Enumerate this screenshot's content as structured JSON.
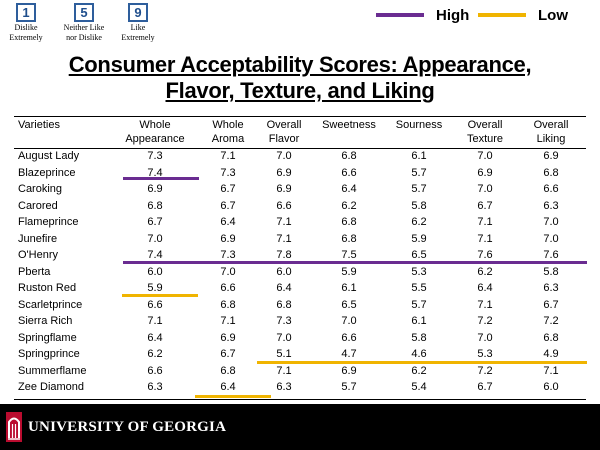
{
  "scale": [
    {
      "value": "1",
      "caption": [
        "Dislike",
        "Extremely"
      ]
    },
    {
      "value": "5",
      "caption": [
        "Neither Like",
        "nor Dislike"
      ]
    },
    {
      "value": "9",
      "caption": [
        "Like",
        "Extremely"
      ]
    }
  ],
  "legend": {
    "high": {
      "label": "High",
      "color": "#6a2c91"
    },
    "low": {
      "label": "Low",
      "color": "#f0b400"
    }
  },
  "title": {
    "line1": "Consumer Acceptability Scores: Appearance,",
    "line2": "Flavor, Texture, and Liking"
  },
  "table": {
    "columns": [
      [
        "Varieties"
      ],
      [
        "Whole",
        "Appearance"
      ],
      [
        "Whole",
        "Aroma"
      ],
      [
        "Overall",
        "Flavor"
      ],
      [
        "Sweetness"
      ],
      [
        "Sourness"
      ],
      [
        "Overall",
        "Texture"
      ],
      [
        "Overall",
        "Liking"
      ]
    ],
    "rows": [
      [
        "August Lady",
        "7.3",
        "7.1",
        "7.0",
        "6.8",
        "6.1",
        "7.0",
        "6.9"
      ],
      [
        "Blazeprince",
        "7.4",
        "7.3",
        "6.9",
        "6.6",
        "5.7",
        "6.9",
        "6.8"
      ],
      [
        "Caroking",
        "6.9",
        "6.7",
        "6.9",
        "6.4",
        "5.7",
        "7.0",
        "6.6"
      ],
      [
        "Carored",
        "6.8",
        "6.7",
        "6.6",
        "6.2",
        "5.8",
        "6.7",
        "6.3"
      ],
      [
        "Flameprince",
        "6.7",
        "6.4",
        "7.1",
        "6.8",
        "6.2",
        "7.1",
        "7.0"
      ],
      [
        "Junefire",
        "7.0",
        "6.9",
        "7.1",
        "6.8",
        "5.9",
        "7.1",
        "7.0"
      ],
      [
        "O'Henry",
        "7.4",
        "7.3",
        "7.8",
        "7.5",
        "6.5",
        "7.6",
        "7.6"
      ],
      [
        "Pberta",
        "6.0",
        "7.0",
        "6.0",
        "5.9",
        "5.3",
        "6.2",
        "5.8"
      ],
      [
        "Ruston Red",
        "5.9",
        "6.6",
        "6.4",
        "6.1",
        "5.5",
        "6.4",
        "6.3"
      ],
      [
        "Scarletprince",
        "6.6",
        "6.8",
        "6.8",
        "6.5",
        "5.7",
        "7.1",
        "6.7"
      ],
      [
        "Sierra Rich",
        "7.1",
        "7.1",
        "7.3",
        "7.0",
        "6.1",
        "7.2",
        "7.2"
      ],
      [
        "Springflame",
        "6.4",
        "6.9",
        "7.0",
        "6.6",
        "5.8",
        "7.0",
        "6.8"
      ],
      [
        "Springprince",
        "6.2",
        "6.7",
        "5.1",
        "4.7",
        "4.6",
        "5.3",
        "4.9"
      ],
      [
        "Summerflame",
        "6.6",
        "6.8",
        "7.1",
        "6.9",
        "6.2",
        "7.2",
        "7.1"
      ],
      [
        "Zee Diamond",
        "6.3",
        "6.4",
        "6.3",
        "5.7",
        "5.4",
        "6.7",
        "6.0"
      ]
    ]
  },
  "footer": {
    "text": "UNIVERSITY OF GEORGIA",
    "brand_color": "#ba0c2f"
  }
}
